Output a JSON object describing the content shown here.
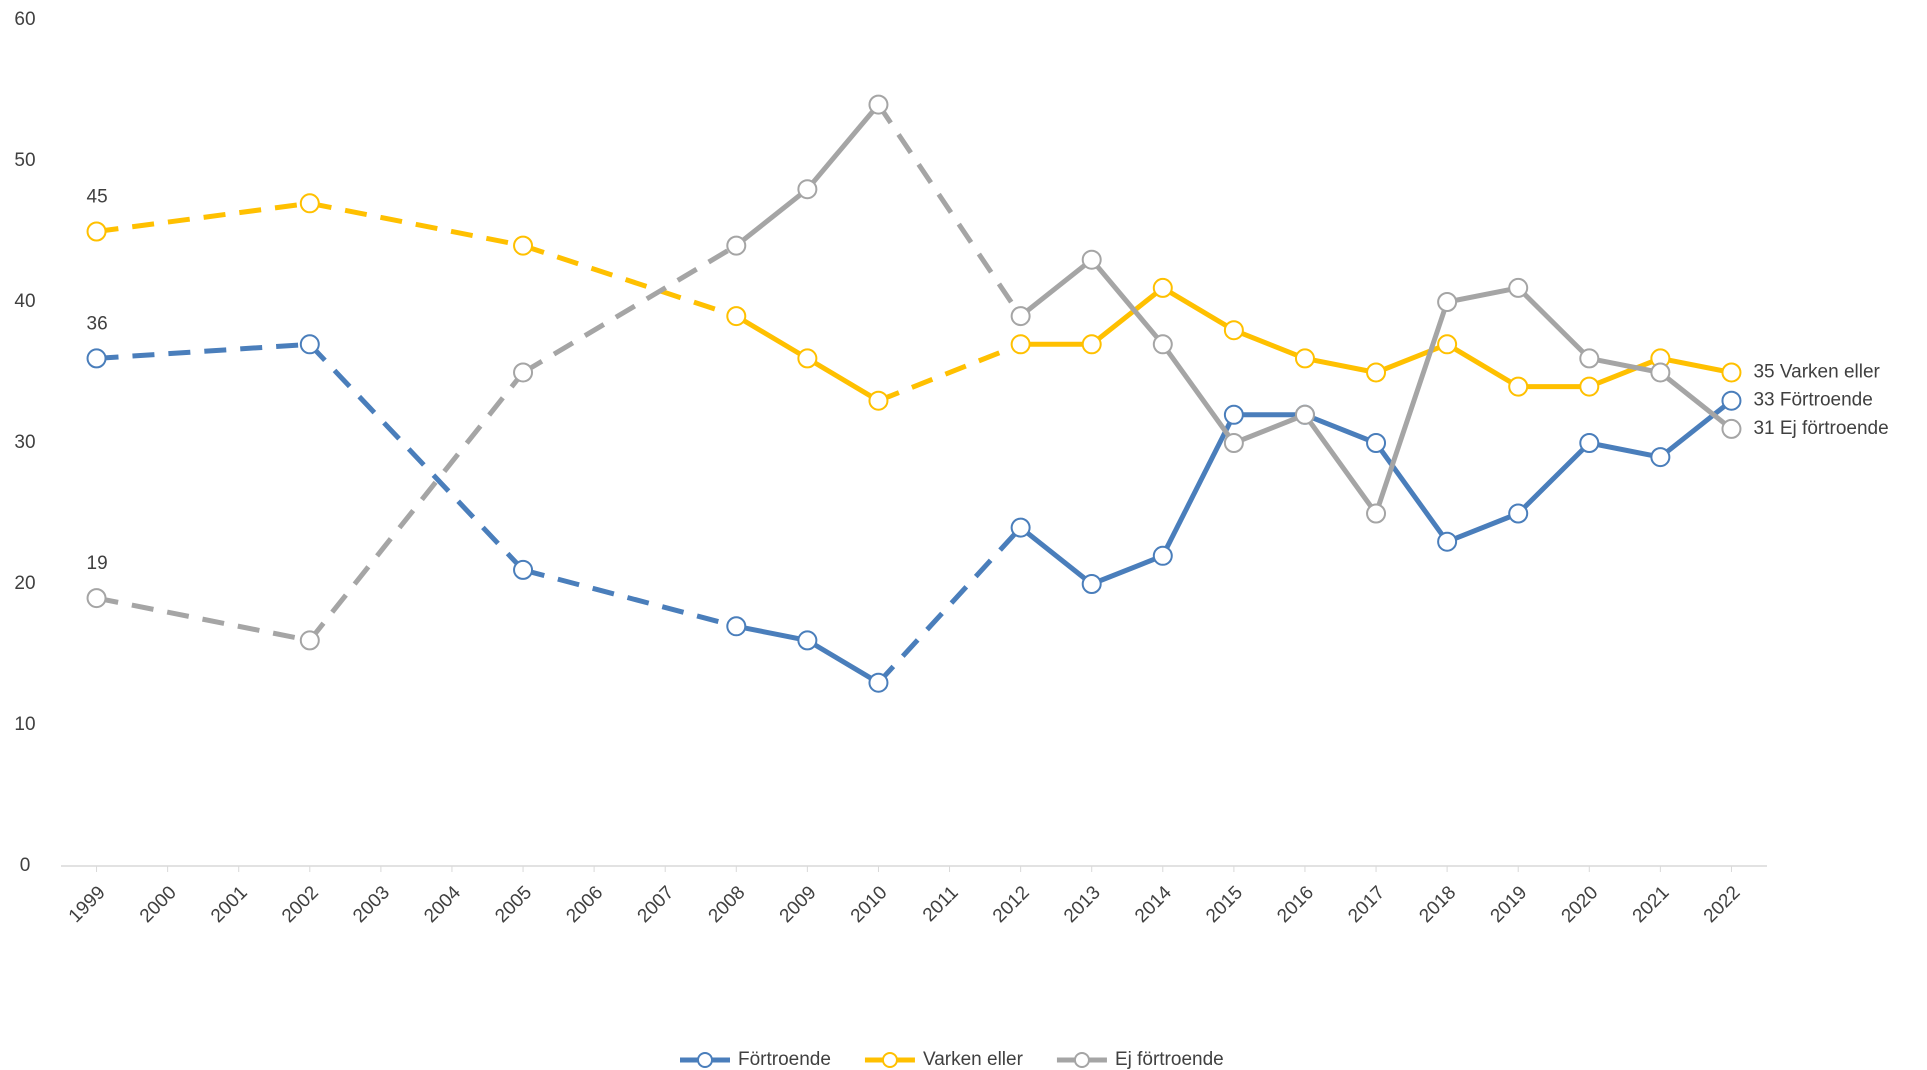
{
  "chart_data": {
    "type": "line",
    "x": [
      1999,
      2002,
      2005,
      2008,
      2009,
      2010,
      2012,
      2013,
      2014,
      2015,
      2016,
      2017,
      2018,
      2019,
      2020,
      2021,
      2022
    ],
    "series": [
      {
        "name": "Förtroende",
        "color": "#4a7ebb",
        "values": [
          36,
          37,
          21,
          17,
          16,
          13,
          24,
          20,
          22,
          32,
          32,
          30,
          23,
          25,
          30,
          29,
          33
        ]
      },
      {
        "name": "Varken eller",
        "color": "#ffc000",
        "values": [
          45,
          47,
          44,
          39,
          36,
          33,
          37,
          37,
          41,
          38,
          36,
          35,
          37,
          34,
          34,
          36,
          35
        ]
      },
      {
        "name": "Ej förtroende",
        "color": "#a5a5a5",
        "values": [
          19,
          16,
          35,
          44,
          48,
          54,
          39,
          43,
          37,
          30,
          32,
          25,
          40,
          41,
          36,
          35,
          31
        ]
      }
    ],
    "xlim": [
      1998.5,
      2022.5
    ],
    "xticks": [
      1999,
      2000,
      2001,
      2002,
      2003,
      2004,
      2005,
      2006,
      2007,
      2008,
      2009,
      2010,
      2011,
      2012,
      2013,
      2014,
      2015,
      2016,
      2017,
      2018,
      2019,
      2020,
      2021,
      2022
    ],
    "ylim": [
      0,
      60
    ],
    "yticks": [
      0,
      10,
      20,
      30,
      40,
      50,
      60
    ],
    "legend": "bottom"
  }
}
